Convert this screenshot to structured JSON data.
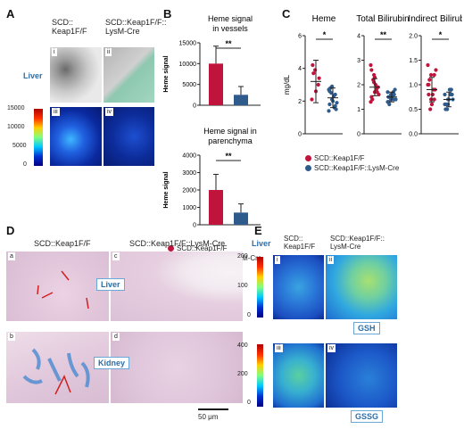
{
  "panels": {
    "A": "A",
    "B": "B",
    "C": "C",
    "D": "D",
    "E": "E"
  },
  "panelA": {
    "group1": "SCD::\nKeap1F/F",
    "group2": "SCD::Keap1F/F::\nLysM-Cre",
    "tissue": "Liver",
    "tiles": [
      "i",
      "ii",
      "iii",
      "iv"
    ],
    "colorbar_ticks": [
      "15000",
      "10000",
      "5000",
      "0"
    ],
    "colors": {
      "scaffold_liver": "#8ec8b0"
    }
  },
  "panelB": {
    "legend": [
      "SCD::Keap1F/F",
      "SCD::Keap1F/F::LysM-Cre"
    ],
    "colors": {
      "wt": "#c0143c",
      "cre": "#2f5a8c"
    },
    "charts": [
      {
        "title": "Heme signal\nin vessels",
        "ylabel": "Heme signal",
        "ylim": [
          0,
          15000
        ],
        "ticks": [
          "15000",
          "10000",
          "5000",
          "0"
        ],
        "values": [
          10000,
          2500
        ],
        "errors": [
          4200,
          2000
        ],
        "sig": "**"
      },
      {
        "title": "Heme signal in\nparenchyma",
        "ylabel": "Heme signal",
        "ylim": [
          0,
          4000
        ],
        "ticks": [
          "4000",
          "3000",
          "2000",
          "1000",
          "0"
        ],
        "values": [
          2000,
          700
        ],
        "errors": [
          900,
          500
        ],
        "sig": "**"
      }
    ]
  },
  "panelC": {
    "ylabel": "mg/dL",
    "legend": [
      "SCD::Keap1F/F",
      "SCD::Keap1F/F::LysM-Cre"
    ],
    "charts": [
      {
        "title": "Heme",
        "ylim": [
          0,
          6
        ],
        "ticks": [
          "6",
          "4",
          "2",
          "0"
        ],
        "sig": "*",
        "wt": {
          "mean": 3.2,
          "sd": 1.3,
          "pts": [
            2.1,
            3.9,
            3.0,
            4.2,
            2.6,
            3.4,
            3.7
          ]
        },
        "cre": {
          "mean": 2.2,
          "sd": 0.6,
          "pts": [
            1.4,
            2.9,
            1.7,
            2.6,
            2.0,
            1.5,
            2.8,
            2.3,
            1.9,
            2.5,
            1.6,
            2.7,
            2.1,
            2.4,
            1.8
          ]
        }
      },
      {
        "title": "Total Bilirubin",
        "ylim": [
          0,
          4
        ],
        "ticks": [
          "4",
          "3",
          "2",
          "1",
          "0"
        ],
        "sig": "**",
        "wt": {
          "mean": 1.9,
          "sd": 0.35,
          "pts": [
            2.8,
            2.1,
            1.7,
            1.5,
            2.3,
            1.9,
            1.4,
            2.0,
            1.6,
            2.2,
            1.8,
            1.3,
            2.4,
            1.9,
            2.6,
            1.7
          ]
        },
        "cre": {
          "mean": 1.5,
          "sd": 0.2,
          "pts": [
            1.7,
            1.4,
            1.6,
            1.3,
            1.5,
            1.8,
            1.2,
            1.6,
            1.4,
            1.5,
            1.7,
            1.3,
            1.6,
            1.4,
            1.5
          ]
        }
      },
      {
        "title": "Indirect Bilirubin",
        "ylim": [
          0,
          2
        ],
        "ticks": [
          "2.0",
          "1.5",
          "1.0",
          "0.5",
          "0.0"
        ],
        "sig": "*",
        "wt": {
          "mean": 0.9,
          "sd": 0.25,
          "pts": [
            1.4,
            1.2,
            0.7,
            1.0,
            0.6,
            0.9,
            1.1,
            0.8,
            1.3,
            0.5,
            0.9,
            1.0,
            0.7,
            1.2,
            0.8,
            0.6
          ]
        },
        "cre": {
          "mean": 0.7,
          "sd": 0.15,
          "pts": [
            0.8,
            0.6,
            0.9,
            0.5,
            0.7,
            0.8,
            0.6,
            0.9,
            0.7,
            0.5,
            0.8,
            0.6,
            0.7,
            0.9,
            0.6
          ]
        }
      }
    ]
  },
  "panelD": {
    "col1": "SCD::Keap1F/F",
    "col2": "SCD::Keap1F/F::LysM-Cre",
    "tiles": [
      "a",
      "c",
      "b",
      "d"
    ],
    "liver_label": "Liver",
    "kidney_label": "Kidney",
    "scale": "50 μm",
    "colors": {
      "tissue": "#e3c8dc",
      "stain": "#4a8ad0"
    }
  },
  "panelE": {
    "tissue": "Liver",
    "col1": "SCD::\nKeap1F/F",
    "col2": "SCD::Keap1F/F::\nLysM-Cre",
    "tiles": [
      "i",
      "ii",
      "iii",
      "iv"
    ],
    "cb1_ticks": [
      "200",
      "100",
      "0"
    ],
    "cb2_ticks": [
      "400",
      "200",
      "0"
    ],
    "gsh_label": "GSH",
    "gssg_label": "GSSG"
  }
}
